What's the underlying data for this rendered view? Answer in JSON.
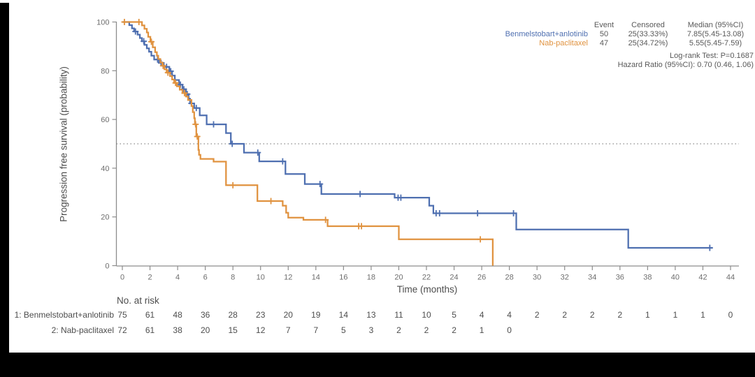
{
  "chart": {
    "y_axis": {
      "title": "Progression free survival (probability)",
      "ticks": [
        0,
        20,
        40,
        60,
        80,
        100
      ]
    },
    "x_axis": {
      "title": "Time (months)",
      "ticks": [
        0,
        2,
        4,
        6,
        8,
        10,
        12,
        14,
        16,
        18,
        20,
        22,
        24,
        26,
        28,
        30,
        32,
        34,
        36,
        38,
        40,
        42,
        44
      ]
    },
    "legend": {
      "header": {
        "event": "Event",
        "censored": "Censored",
        "median": "Median (95%CI)"
      },
      "rows": [
        {
          "label": "Benmelstobart+anlotinib",
          "color": "#4e6fb0",
          "event": "50",
          "censored": "25(33.33%)",
          "median": "7.85(5.45-13.08)"
        },
        {
          "label": "Nab-paclitaxel",
          "color": "#e0923f",
          "event": "47",
          "censored": "25(34.72%)",
          "median": "5.55(5.45-7.59)"
        }
      ],
      "logrank": "Log-rank Test: P=0.1687",
      "hazard": "Hazard Ratio (95%CI): 0.70 (0.46, 1.06)"
    },
    "at_risk": {
      "title": "No. at risk",
      "rows": [
        {
          "label": "1: Benmelstobart+anlotinib",
          "values": [
            "75",
            "61",
            "48",
            "36",
            "28",
            "23",
            "20",
            "19",
            "14",
            "13",
            "11",
            "10",
            "5",
            "4",
            "4",
            "2",
            "2",
            "2",
            "2",
            "1",
            "1",
            "1",
            "0"
          ]
        },
        {
          "label": "2: Nab-paclitaxel",
          "values": [
            "72",
            "61",
            "38",
            "20",
            "15",
            "12",
            "7",
            "7",
            "5",
            "3",
            "2",
            "2",
            "2",
            "1",
            "0"
          ]
        }
      ]
    },
    "colors": {
      "blue": "#4e6fb0",
      "orange": "#e0923f",
      "axis": "#8c8c8c",
      "tick_text": "#6e6e6e",
      "dotted": "#8a8a8a"
    }
  },
  "chart_data": {
    "type": "km_step",
    "title": "",
    "xlabel": "Time (months)",
    "ylabel": "Progression free survival (probability)",
    "x_range": [
      0,
      44
    ],
    "y_range": [
      0,
      100
    ],
    "reference_line_y": 50,
    "series": [
      {
        "name": "Benmelstobart+anlotinib",
        "color": "#4e6fb0",
        "start_p": 100,
        "end_t": 42.7,
        "steps": [
          [
            0.5,
            98.7
          ],
          [
            0.7,
            97.4
          ],
          [
            0.85,
            96.1
          ],
          [
            1.1,
            94.8
          ],
          [
            1.27,
            93.4
          ],
          [
            1.42,
            92.1
          ],
          [
            1.6,
            90.6
          ],
          [
            1.77,
            89.2
          ],
          [
            1.93,
            87.8
          ],
          [
            2.1,
            86.2
          ],
          [
            2.3,
            84.6
          ],
          [
            2.65,
            83.2
          ],
          [
            3.0,
            81.6
          ],
          [
            3.4,
            79.8
          ],
          [
            3.6,
            78.0
          ],
          [
            3.8,
            76.2
          ],
          [
            4.1,
            74.3
          ],
          [
            4.35,
            72.4
          ],
          [
            4.6,
            70.4
          ],
          [
            4.8,
            68.5
          ],
          [
            4.9,
            66.6
          ],
          [
            5.2,
            64.7
          ],
          [
            5.6,
            61.7
          ],
          [
            6.1,
            58.0
          ],
          [
            7.5,
            54.4
          ],
          [
            7.85,
            50.0
          ],
          [
            8.8,
            46.4
          ],
          [
            9.9,
            42.8
          ],
          [
            11.8,
            37.6
          ],
          [
            13.2,
            33.5
          ],
          [
            14.4,
            29.4
          ],
          [
            19.7,
            27.9
          ],
          [
            22.2,
            24.6
          ],
          [
            22.5,
            21.5
          ],
          [
            28.5,
            14.8
          ],
          [
            36.6,
            7.3
          ]
        ],
        "censors": [
          0.95,
          1.55,
          2.55,
          2.8,
          3.2,
          3.5,
          4.2,
          4.45,
          4.7,
          5.0,
          5.35,
          6.6,
          7.95,
          9.8,
          11.6,
          14.3,
          17.2,
          19.95,
          20.15,
          22.7,
          22.95,
          25.7,
          28.3,
          42.5
        ]
      },
      {
        "name": "Nab-paclitaxel",
        "color": "#e0923f",
        "start_p": 100,
        "end_t": 26.8,
        "steps": [
          [
            1.42,
            98.6
          ],
          [
            1.6,
            97.2
          ],
          [
            1.77,
            95.7
          ],
          [
            1.87,
            93.9
          ],
          [
            2.03,
            91.9
          ],
          [
            2.2,
            89.6
          ],
          [
            2.37,
            87.6
          ],
          [
            2.5,
            86.2
          ],
          [
            2.6,
            84.8
          ],
          [
            2.75,
            83.4
          ],
          [
            2.9,
            82.0
          ],
          [
            3.05,
            80.6
          ],
          [
            3.2,
            79.2
          ],
          [
            3.45,
            77.8
          ],
          [
            3.6,
            76.4
          ],
          [
            3.75,
            75.0
          ],
          [
            3.95,
            73.6
          ],
          [
            4.15,
            72.2
          ],
          [
            4.35,
            70.8
          ],
          [
            4.6,
            69.4
          ],
          [
            4.75,
            68.0
          ],
          [
            5.0,
            65.5
          ],
          [
            5.1,
            63.0
          ],
          [
            5.2,
            60.5
          ],
          [
            5.25,
            58.0
          ],
          [
            5.35,
            53.0
          ],
          [
            5.5,
            47.5
          ],
          [
            5.55,
            45.5
          ],
          [
            5.65,
            43.8
          ],
          [
            6.6,
            42.7
          ],
          [
            7.5,
            33.0
          ],
          [
            9.77,
            26.5
          ],
          [
            11.6,
            24.6
          ],
          [
            11.85,
            21.7
          ],
          [
            12.0,
            19.7
          ],
          [
            13.1,
            18.8
          ],
          [
            14.85,
            16.2
          ],
          [
            20.0,
            10.8
          ],
          [
            26.8,
            0
          ]
        ],
        "censors": [
          0.15,
          1.2,
          2.1,
          2.95,
          3.3,
          3.85,
          4.5,
          5.3,
          5.42,
          8.0,
          10.75,
          14.7,
          17.1,
          17.3,
          25.9
        ]
      }
    ]
  }
}
